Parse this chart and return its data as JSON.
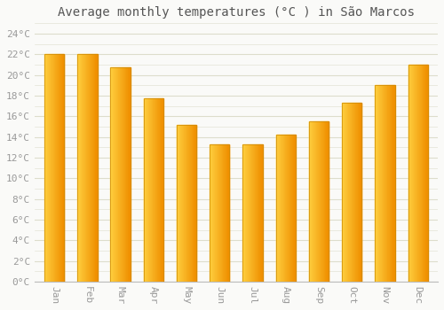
{
  "title": "Average monthly temperatures (°C ) in São Marcos",
  "months": [
    "Jan",
    "Feb",
    "Mar",
    "Apr",
    "May",
    "Jun",
    "Jul",
    "Aug",
    "Sep",
    "Oct",
    "Nov",
    "Dec"
  ],
  "values": [
    22.0,
    22.0,
    20.7,
    17.7,
    15.2,
    13.3,
    13.3,
    14.2,
    15.5,
    17.3,
    19.0,
    21.0
  ],
  "bar_color_left": "#FFD040",
  "bar_color_right": "#F09000",
  "bar_edge_color": "#CC8800",
  "background_color": "#FAFAF8",
  "plot_bg_color": "#FAFAF8",
  "grid_color": "#DDDDCC",
  "tick_label_color": "#999999",
  "title_color": "#555555",
  "ylim": [
    0,
    25
  ],
  "ytick_step": 2,
  "tick_fontsize": 8,
  "title_fontsize": 10,
  "bar_width": 0.6
}
